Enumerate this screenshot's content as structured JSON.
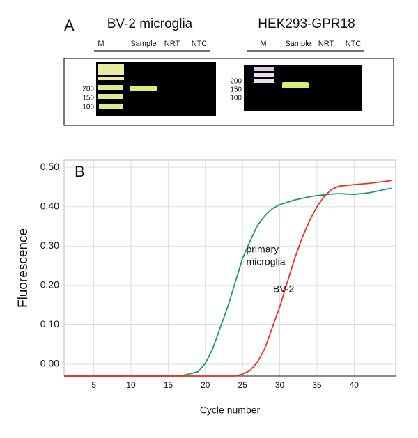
{
  "panel_a": {
    "label": "A",
    "gels": [
      {
        "title": "BV-2 microglia",
        "lanes": [
          "M",
          "Sample",
          "NRT",
          "NTC"
        ],
        "markers": [
          "200",
          "150",
          "100"
        ]
      },
      {
        "title": "HEK293-GPR18",
        "lanes": [
          "M",
          "Sample",
          "NRT",
          "NTC"
        ],
        "markers": [
          "200",
          "150",
          "100"
        ]
      }
    ]
  },
  "chart_data": {
    "type": "line",
    "panel_label": "B",
    "x_label": "Cycle number",
    "y_label": "Fluorescence",
    "x": [
      1,
      15,
      17,
      18,
      19,
      20,
      21,
      22,
      23,
      24,
      25,
      26,
      27,
      28,
      29,
      30,
      31,
      32,
      33,
      34,
      35,
      36,
      37,
      38,
      40,
      42,
      45
    ],
    "series": [
      {
        "name": "primary microglia",
        "color": "#1a9a6c",
        "values": [
          -0.03,
          -0.03,
          -0.028,
          -0.024,
          -0.019,
          0.002,
          0.04,
          0.093,
          0.145,
          0.207,
          0.268,
          0.312,
          0.352,
          0.377,
          0.395,
          0.405,
          0.411,
          0.417,
          0.421,
          0.425,
          0.428,
          0.43,
          0.432,
          0.433,
          0.431,
          0.435,
          0.447
        ]
      },
      {
        "name": "BV-2",
        "color": "#e8321e",
        "values": [
          -0.03,
          -0.03,
          -0.03,
          -0.03,
          -0.03,
          -0.03,
          -0.03,
          -0.03,
          -0.03,
          -0.03,
          -0.025,
          -0.016,
          0.005,
          0.04,
          0.093,
          0.145,
          0.207,
          0.268,
          0.32,
          0.364,
          0.4,
          0.426,
          0.444,
          0.452,
          0.456,
          0.459,
          0.466
        ]
      }
    ],
    "annotations": [
      {
        "lines": [
          "primary",
          "microglia"
        ],
        "x": 25.5,
        "y": 0.29
      },
      {
        "lines": [
          "BV-2"
        ],
        "x": 29.1,
        "y": 0.19
      }
    ],
    "xlim": [
      1,
      45.6
    ],
    "ylim": [
      -0.03,
      0.518
    ],
    "xticks": [
      5,
      10,
      15,
      20,
      25,
      30,
      35,
      40
    ],
    "yticks": [
      {
        "value": 0.5,
        "label": "0.50"
      },
      {
        "value": 0.4,
        "label": "0.40"
      },
      {
        "value": 0.3,
        "label": "0.30"
      },
      {
        "value": 0.2,
        "label": "0.20"
      },
      {
        "value": 0.1,
        "label": "0.10"
      },
      {
        "value": 0,
        "label": "0.00"
      }
    ],
    "grid": true
  }
}
